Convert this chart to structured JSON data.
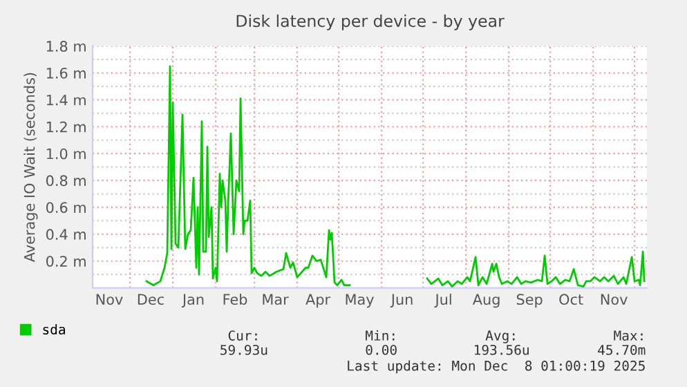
{
  "chart_data": {
    "type": "line",
    "title": "Disk latency per device - by year",
    "ylabel": "Average IO Wait (seconds)",
    "series": [
      {
        "name": "sda",
        "color": "#00cc00",
        "x": [
          "2024-12-13",
          "2024-12-18",
          "2024-12-23",
          "2024-12-26",
          "2024-12-28",
          "2024-12-30",
          "2024-12-31",
          "2025-01-01",
          "2025-01-03",
          "2025-01-05",
          "2025-01-08",
          "2025-01-10",
          "2025-01-12",
          "2025-01-14",
          "2025-01-16",
          "2025-01-18",
          "2025-01-19",
          "2025-01-20",
          "2025-01-22",
          "2025-01-23",
          "2025-01-25",
          "2025-01-26",
          "2025-01-27",
          "2025-01-29",
          "2025-01-30",
          "2025-02-01",
          "2025-02-02",
          "2025-02-04",
          "2025-02-05",
          "2025-02-06",
          "2025-02-08",
          "2025-02-09",
          "2025-02-10",
          "2025-02-12",
          "2025-02-14",
          "2025-02-16",
          "2025-02-18",
          "2025-02-19",
          "2025-02-21",
          "2025-02-22",
          "2025-02-24",
          "2025-02-26",
          "2025-02-27",
          "2025-03-01",
          "2025-03-03",
          "2025-03-06",
          "2025-03-09",
          "2025-03-12",
          "2025-03-17",
          "2025-03-22",
          "2025-03-24",
          "2025-03-27",
          "2025-03-29",
          "2025-04-01",
          "2025-04-07",
          "2025-04-09",
          "2025-04-12",
          "2025-04-15",
          "2025-04-18",
          "2025-04-22",
          "2025-04-24",
          "2025-04-25",
          "2025-04-26",
          "2025-04-28",
          "2025-04-30",
          "2025-05-03",
          "2025-05-05",
          "2025-05-09",
          "2025-06-01",
          "2025-07-04",
          "2025-07-07",
          "2025-07-12",
          "2025-07-15",
          "2025-07-19",
          "2025-07-22",
          "2025-07-26",
          "2025-07-29",
          "2025-08-02",
          "2025-08-04",
          "2025-08-08",
          "2025-08-10",
          "2025-08-13",
          "2025-08-16",
          "2025-08-20",
          "2025-08-21",
          "2025-08-23",
          "2025-08-25",
          "2025-08-27",
          "2025-08-31",
          "2025-09-03",
          "2025-09-07",
          "2025-09-10",
          "2025-09-13",
          "2025-09-17",
          "2025-09-22",
          "2025-09-25",
          "2025-09-27",
          "2025-09-29",
          "2025-10-02",
          "2025-10-05",
          "2025-10-08",
          "2025-10-12",
          "2025-10-15",
          "2025-10-18",
          "2025-10-21",
          "2025-10-25",
          "2025-10-27",
          "2025-10-30",
          "2025-11-02",
          "2025-11-06",
          "2025-11-09",
          "2025-11-12",
          "2025-11-16",
          "2025-11-19",
          "2025-11-23",
          "2025-11-25",
          "2025-11-29",
          "2025-12-01",
          "2025-12-04",
          "2025-12-05",
          "2025-12-07",
          "2025-12-08"
        ],
        "values": [
          0.05,
          0.02,
          0.05,
          0.15,
          0.26,
          1.65,
          0.29,
          1.38,
          0.33,
          0.3,
          1.29,
          0.29,
          0.4,
          0.43,
          0.82,
          0.15,
          0.6,
          0.1,
          1.24,
          0.27,
          0.27,
          1.05,
          0.38,
          0.6,
          0.07,
          0.15,
          0.05,
          0.85,
          0.6,
          0.8,
          0.65,
          0.27,
          0.62,
          1.15,
          0.4,
          0.8,
          0.72,
          1.41,
          0.4,
          0.5,
          0.5,
          0.65,
          0.11,
          0.15,
          0.11,
          0.09,
          0.12,
          0.09,
          0.12,
          0.14,
          0.26,
          0.15,
          0.19,
          0.08,
          0.15,
          0.15,
          0.24,
          0.2,
          0.21,
          0.08,
          0.43,
          0.36,
          0.41,
          0.04,
          0.02,
          0.06,
          0.02,
          0.02,
          null,
          0.07,
          0.03,
          0.07,
          0.02,
          0.05,
          0.01,
          0.05,
          0.03,
          0.08,
          0.05,
          0.23,
          0.02,
          0.08,
          0.03,
          0.18,
          0.12,
          0.18,
          0.08,
          0.03,
          0.05,
          0.03,
          0.08,
          0.03,
          0.05,
          0.04,
          0.06,
          0.05,
          0.24,
          0.03,
          0.05,
          0.08,
          0.03,
          0.06,
          0.05,
          0.14,
          0.02,
          0.01,
          0.05,
          0.05,
          0.08,
          0.05,
          0.08,
          0.05,
          0.09,
          0.03,
          0.08,
          0.03,
          0.23,
          0.05,
          0.06,
          0.02,
          0.27,
          0.05
        ]
      }
    ],
    "xlim": [
      "2024-11-04",
      "2025-12-10"
    ],
    "xticks": [
      {
        "value": "2024-11-16",
        "label": "Nov"
      },
      {
        "value": "2024-12-01",
        "label": null
      },
      {
        "value": "2024-12-16",
        "label": "Dec"
      },
      {
        "value": "2025-01-01",
        "label": null
      },
      {
        "value": "2025-01-16",
        "label": "Jan"
      },
      {
        "value": "2025-02-01",
        "label": null
      },
      {
        "value": "2025-02-15",
        "label": "Feb"
      },
      {
        "value": "2025-03-01",
        "label": null
      },
      {
        "value": "2025-03-16",
        "label": "Mar"
      },
      {
        "value": "2025-04-01",
        "label": null
      },
      {
        "value": "2025-04-16",
        "label": "Apr"
      },
      {
        "value": "2025-05-01",
        "label": null
      },
      {
        "value": "2025-05-16",
        "label": "May"
      },
      {
        "value": "2025-06-01",
        "label": null
      },
      {
        "value": "2025-06-16",
        "label": "Jun"
      },
      {
        "value": "2025-07-01",
        "label": null
      },
      {
        "value": "2025-07-16",
        "label": "Jul"
      },
      {
        "value": "2025-08-01",
        "label": null
      },
      {
        "value": "2025-08-16",
        "label": "Aug"
      },
      {
        "value": "2025-09-01",
        "label": null
      },
      {
        "value": "2025-09-16",
        "label": "Sep"
      },
      {
        "value": "2025-10-01",
        "label": null
      },
      {
        "value": "2025-10-16",
        "label": "Oct"
      },
      {
        "value": "2025-11-01",
        "label": null
      },
      {
        "value": "2025-11-16",
        "label": "Nov"
      },
      {
        "value": "2025-12-01",
        "label": null
      }
    ],
    "ylim": [
      0,
      1.8
    ],
    "yticks": [
      {
        "value": 0.1,
        "label": null
      },
      {
        "value": 0.2,
        "label": "0.2 m"
      },
      {
        "value": 0.3,
        "label": null
      },
      {
        "value": 0.4,
        "label": "0.4 m"
      },
      {
        "value": 0.5,
        "label": null
      },
      {
        "value": 0.6,
        "label": "0.6 m"
      },
      {
        "value": 0.7,
        "label": null
      },
      {
        "value": 0.8,
        "label": "0.8 m"
      },
      {
        "value": 0.9,
        "label": null
      },
      {
        "value": 1.0,
        "label": "1.0 m"
      },
      {
        "value": 1.1,
        "label": null
      },
      {
        "value": 1.2,
        "label": "1.2 m"
      },
      {
        "value": 1.3,
        "label": null
      },
      {
        "value": 1.4,
        "label": "1.4 m"
      },
      {
        "value": 1.5,
        "label": null
      },
      {
        "value": 1.6,
        "label": "1.6 m"
      },
      {
        "value": 1.7,
        "label": null
      },
      {
        "value": 1.8,
        "label": "1.8 m"
      }
    ],
    "grid": true,
    "legend": "bottom left",
    "marker": "none",
    "line_style": "solid",
    "annotations": [
      "Cur:",
      "Min:",
      "Avg:",
      "Max:",
      "59.93u",
      "0.00",
      "193.56u",
      "45.70m",
      "Last update: Mon Dec  8 01:00:19 2025"
    ]
  }
}
